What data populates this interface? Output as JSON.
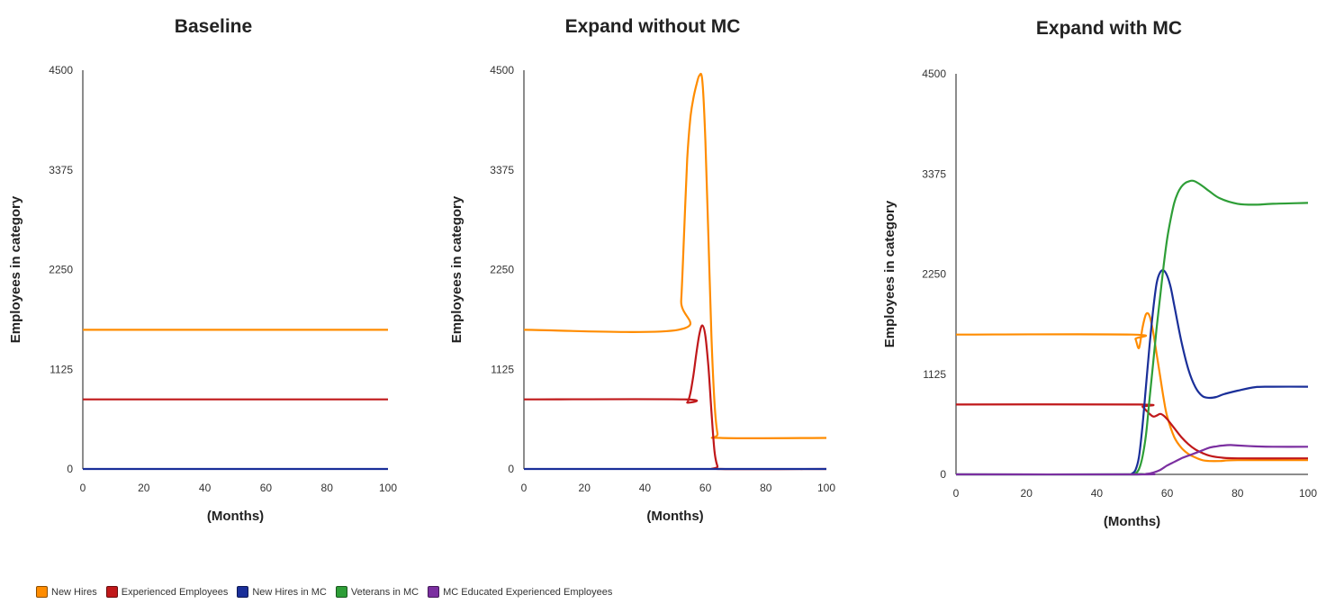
{
  "legend": {
    "position": "bottom-left",
    "items": [
      {
        "name": "New Hires",
        "color": "#ff8c00"
      },
      {
        "name": "Experienced Employees",
        "color": "#c0181a"
      },
      {
        "name": "New Hires in MC",
        "color": "#1a2f99"
      },
      {
        "name": "Veterans in MC",
        "color": "#2e9e37"
      },
      {
        "name": "MC Educated Experienced Employees",
        "color": "#7b2fa0"
      }
    ]
  },
  "chart_data": [
    {
      "type": "line",
      "title": "Baseline",
      "xlabel": "(Months)",
      "ylabel": "Employees in category",
      "xlim": [
        0,
        100
      ],
      "ylim": [
        0,
        4500
      ],
      "xticks": [
        "0",
        "20",
        "40",
        "60",
        "80",
        "100"
      ],
      "yticks": [
        "0",
        "1125",
        "2250",
        "3375",
        "4500"
      ],
      "grid": false,
      "series": [
        {
          "name": "New Hires",
          "color": "#ff8c00",
          "x": [
            0,
            100
          ],
          "y": [
            1570,
            1570
          ]
        },
        {
          "name": "Experienced Employees",
          "color": "#c0181a",
          "x": [
            0,
            100
          ],
          "y": [
            785,
            785
          ]
        },
        {
          "name": "New Hires in MC",
          "color": "#1a2f99",
          "x": [
            0,
            100
          ],
          "y": [
            0,
            0
          ]
        }
      ]
    },
    {
      "type": "line",
      "title": "Expand without MC",
      "xlabel": "(Months)",
      "ylabel": "Employees in category",
      "xlim": [
        0,
        100
      ],
      "ylim": [
        0,
        4500
      ],
      "xticks": [
        "0",
        "20",
        "40",
        "60",
        "80",
        "100"
      ],
      "yticks": [
        "0",
        "1125",
        "2250",
        "3375",
        "4500"
      ],
      "grid": false,
      "series": [
        {
          "name": "New Hires",
          "color": "#ff8c00",
          "x": [
            0,
            51,
            52,
            53,
            54,
            55,
            56,
            57,
            58,
            59,
            60,
            61,
            62,
            63,
            64,
            65,
            100
          ],
          "y": [
            1570,
            1570,
            1900,
            2700,
            3500,
            3950,
            4180,
            4330,
            4440,
            4380,
            3700,
            2600,
            1500,
            750,
            400,
            350,
            350
          ]
        },
        {
          "name": "Experienced Employees",
          "color": "#c0181a",
          "x": [
            0,
            53,
            54,
            55,
            56,
            57,
            58,
            59,
            60,
            61,
            62,
            63,
            64,
            65,
            100
          ],
          "y": [
            785,
            785,
            750,
            850,
            1050,
            1300,
            1520,
            1620,
            1500,
            1150,
            650,
            200,
            30,
            0,
            0
          ]
        },
        {
          "name": "New Hires in MC",
          "color": "#1a2f99",
          "x": [
            0,
            100
          ],
          "y": [
            0,
            0
          ]
        }
      ]
    },
    {
      "type": "line",
      "title": "Expand with MC",
      "xlabel": "(Months)",
      "ylabel": "Employees in category",
      "xlim": [
        0,
        100
      ],
      "ylim": [
        0,
        4500
      ],
      "xticks": [
        "0",
        "20",
        "40",
        "60",
        "80",
        "100"
      ],
      "yticks": [
        "0",
        "1125",
        "2250",
        "3375",
        "4500"
      ],
      "grid": false,
      "series": [
        {
          "name": "New Hires",
          "color": "#ff8c00",
          "x": [
            0,
            50,
            51,
            52,
            53,
            54,
            55,
            56,
            57,
            58,
            59,
            60,
            62,
            64,
            66,
            68,
            70,
            72,
            75,
            80,
            100
          ],
          "y": [
            1570,
            1570,
            1520,
            1420,
            1650,
            1800,
            1780,
            1600,
            1350,
            1100,
            850,
            650,
            420,
            300,
            230,
            190,
            160,
            150,
            150,
            160,
            160
          ]
        },
        {
          "name": "Experienced Employees",
          "color": "#c0181a",
          "x": [
            0,
            52,
            53,
            54,
            55,
            56,
            57,
            58,
            59,
            60,
            62,
            64,
            66,
            68,
            70,
            72,
            75,
            80,
            100
          ],
          "y": [
            785,
            785,
            760,
            720,
            680,
            650,
            660,
            680,
            660,
            620,
            520,
            420,
            340,
            280,
            240,
            210,
            190,
            180,
            180
          ]
        },
        {
          "name": "New Hires in MC",
          "color": "#1a2f99",
          "x": [
            0,
            49,
            50,
            51,
            52,
            53,
            54,
            55,
            56,
            57,
            58,
            59,
            60,
            61,
            62,
            64,
            66,
            68,
            70,
            72,
            74,
            76,
            80,
            85,
            90,
            100
          ],
          "y": [
            0,
            0,
            10,
            50,
            200,
            550,
            1000,
            1450,
            1850,
            2150,
            2270,
            2290,
            2230,
            2100,
            1900,
            1500,
            1180,
            980,
            880,
            860,
            870,
            900,
            940,
            980,
            985,
            985
          ]
        },
        {
          "name": "Veterans in MC",
          "color": "#2e9e37",
          "x": [
            0,
            50,
            51,
            52,
            53,
            54,
            55,
            56,
            57,
            58,
            59,
            60,
            61,
            62,
            63,
            64,
            65,
            66,
            67,
            68,
            70,
            72,
            75,
            80,
            85,
            90,
            100
          ],
          "y": [
            0,
            0,
            10,
            60,
            200,
            450,
            850,
            1250,
            1650,
            2000,
            2350,
            2650,
            2870,
            3050,
            3160,
            3230,
            3270,
            3290,
            3300,
            3290,
            3240,
            3180,
            3100,
            3040,
            3030,
            3040,
            3050
          ]
        },
        {
          "name": "MC Educated Experienced Employees",
          "color": "#7b2fa0",
          "x": [
            0,
            52,
            54,
            56,
            58,
            60,
            62,
            64,
            66,
            68,
            70,
            72,
            74,
            76,
            78,
            80,
            85,
            90,
            100
          ],
          "y": [
            0,
            0,
            5,
            20,
            50,
            100,
            140,
            180,
            210,
            240,
            270,
            300,
            315,
            325,
            330,
            325,
            315,
            310,
            310
          ]
        }
      ]
    }
  ]
}
